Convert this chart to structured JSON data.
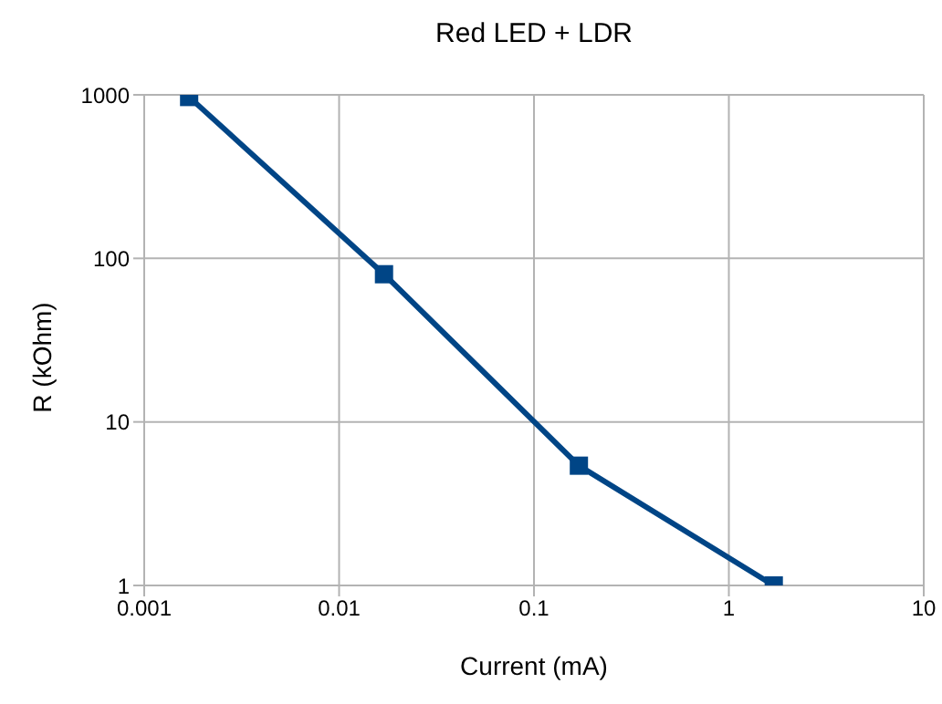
{
  "chart_data": {
    "type": "line",
    "title": "Red LED + LDR",
    "xlabel": "Current (mA)",
    "ylabel": "R (kOhm)",
    "x": [
      0.0017,
      0.017,
      0.17,
      1.7
    ],
    "series": [
      {
        "color": "#004586",
        "values": [
          970,
          80,
          5.4,
          1
        ]
      }
    ],
    "log": "xy",
    "xlim": [
      0.001,
      10
    ],
    "xticks": [
      0.001,
      0.01,
      0.1,
      1,
      10
    ],
    "ylim": [
      1,
      1000
    ],
    "yticks": [
      1,
      10,
      100,
      1000
    ],
    "grid": true,
    "legend": false,
    "marker": "square",
    "line_style": "solid"
  }
}
